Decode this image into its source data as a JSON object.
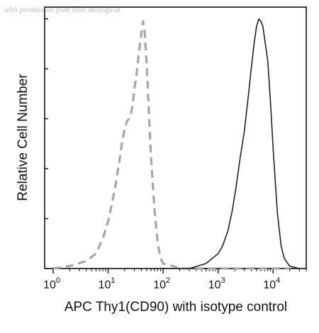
{
  "watermark": "with permission from Sino Biological",
  "chart_data": {
    "type": "line",
    "xlabel": "APC Thy1(CD90) with isotype control",
    "ylabel": "Relative Cell Number",
    "xscale": "log",
    "xlim": [
      0.7,
      40000
    ],
    "ylim": [
      0,
      1.0
    ],
    "x_ticks": [
      {
        "base": "10",
        "exp": "0",
        "value": 1
      },
      {
        "base": "10",
        "exp": "1",
        "value": 10
      },
      {
        "base": "10",
        "exp": "2",
        "value": 100
      },
      {
        "base": "10",
        "exp": "3",
        "value": 1000
      },
      {
        "base": "10",
        "exp": "4",
        "value": 10000
      }
    ],
    "y_ticks": [
      0,
      0.2,
      0.4,
      0.6,
      0.8,
      1.0
    ],
    "grid": false,
    "legend": "none",
    "series": [
      {
        "style": "dashed",
        "color": "#a6a6a6",
        "x": [
          1,
          2,
          4,
          6,
          8,
          10,
          12,
          14,
          16,
          18,
          20,
          22,
          24,
          26,
          28,
          30,
          33,
          36,
          40,
          43,
          46,
          50,
          55,
          60,
          70,
          80,
          90,
          100,
          150,
          200,
          500,
          1000,
          5000,
          20000
        ],
        "y": [
          0.0,
          0.01,
          0.03,
          0.06,
          0.12,
          0.19,
          0.27,
          0.35,
          0.43,
          0.51,
          0.56,
          0.59,
          0.6,
          0.62,
          0.66,
          0.72,
          0.78,
          0.86,
          0.94,
          0.99,
          0.95,
          0.82,
          0.63,
          0.45,
          0.23,
          0.1,
          0.04,
          0.02,
          0.01,
          0.0,
          0.0,
          0.0,
          0.0,
          0.0
        ]
      },
      {
        "style": "solid",
        "color": "#222222",
        "x": [
          100,
          300,
          600,
          1000,
          1200,
          1500,
          1800,
          2100,
          2500,
          3000,
          3500,
          4000,
          4500,
          5000,
          5500,
          6000,
          6500,
          7000,
          8000,
          9000,
          10000,
          11000,
          12000,
          14000,
          16000,
          20000,
          30000
        ],
        "y": [
          0.0,
          0.0,
          0.02,
          0.06,
          0.09,
          0.15,
          0.23,
          0.32,
          0.44,
          0.55,
          0.68,
          0.8,
          0.9,
          0.97,
          1.0,
          0.99,
          0.97,
          0.92,
          0.83,
          0.66,
          0.48,
          0.34,
          0.22,
          0.09,
          0.04,
          0.01,
          0.0
        ]
      }
    ]
  }
}
